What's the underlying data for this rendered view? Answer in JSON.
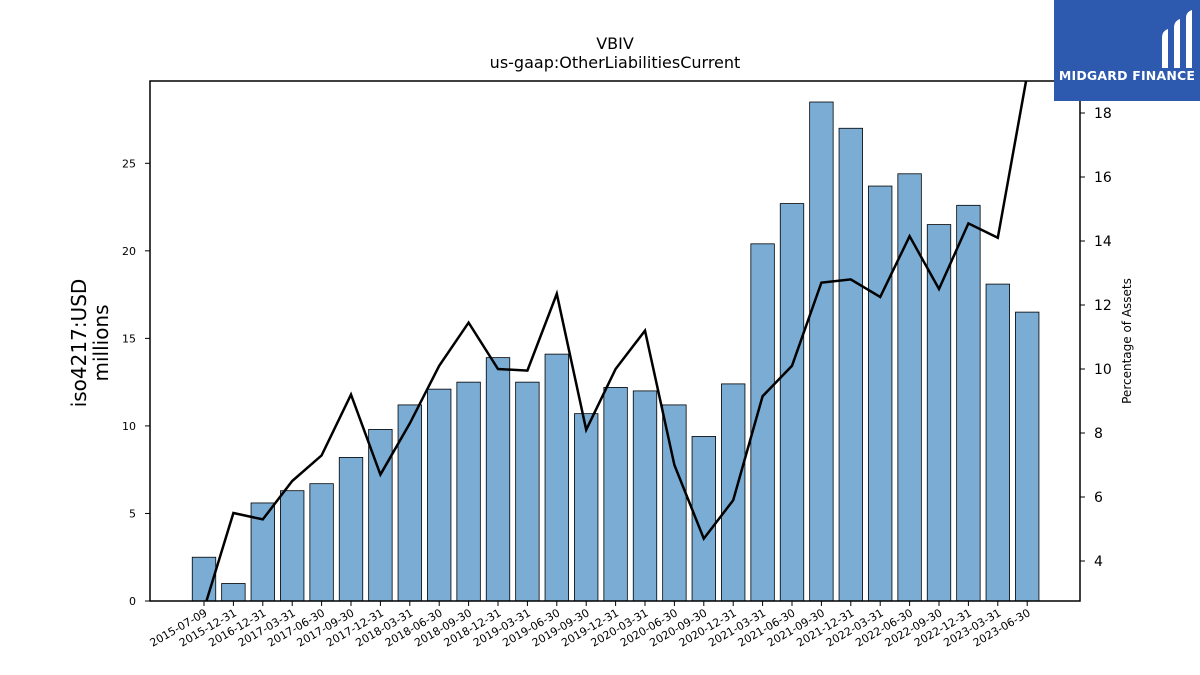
{
  "chart_data": {
    "type": "bar",
    "title": "VBIV",
    "subtitle": "us-gaap:OtherLiabilitiesCurrent",
    "ylabel": "iso4217:USD\nmillions",
    "y2label": "Percentage of Assets",
    "ylim": [
      0,
      29.7
    ],
    "y2lim": [
      2.75,
      19.0
    ],
    "yticks": [
      0,
      5,
      10,
      15,
      20,
      25
    ],
    "y2ticks": [
      4,
      6,
      8,
      10,
      12,
      14,
      16,
      18
    ],
    "categories": [
      "2015-07-09",
      "2015-12-31",
      "2016-12-31",
      "2017-03-31",
      "2017-06-30",
      "2017-09-30",
      "2017-12-31",
      "2018-03-31",
      "2018-06-30",
      "2018-09-30",
      "2018-12-31",
      "2019-03-31",
      "2019-06-30",
      "2019-09-30",
      "2019-12-31",
      "2020-03-31",
      "2020-06-30",
      "2020-09-30",
      "2020-12-31",
      "2021-03-31",
      "2021-06-30",
      "2021-09-30",
      "2021-12-31",
      "2022-03-31",
      "2022-06-30",
      "2022-09-30",
      "2022-12-31",
      "2023-03-31",
      "2023-06-30"
    ],
    "series": [
      {
        "type": "bar",
        "axis": "left",
        "color": "#7badd4",
        "values": [
          2.5,
          1.0,
          5.6,
          6.3,
          6.7,
          8.2,
          9.8,
          11.2,
          12.1,
          12.5,
          13.9,
          12.5,
          14.1,
          10.7,
          12.2,
          12.0,
          11.2,
          9.4,
          12.4,
          20.4,
          22.7,
          28.5,
          27.0,
          23.7,
          24.4,
          21.5,
          22.6,
          18.1,
          16.5
        ]
      },
      {
        "type": "line",
        "axis": "right",
        "color": "#000000",
        "values": [
          2.5,
          5.5,
          5.3,
          6.5,
          7.3,
          9.2,
          6.7,
          8.3,
          10.1,
          11.45,
          10.0,
          9.95,
          12.35,
          8.1,
          10.0,
          11.2,
          7.0,
          4.7,
          5.9,
          9.15,
          10.1,
          12.7,
          12.8,
          12.25,
          14.15,
          12.5,
          14.55,
          14.1,
          19.2
        ]
      }
    ]
  },
  "logo": {
    "text": "MIDGARD FINANCE",
    "background": "#2d5aae"
  }
}
